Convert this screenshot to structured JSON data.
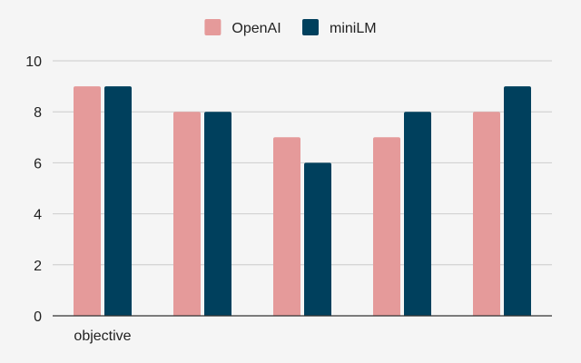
{
  "chart_data": {
    "type": "bar",
    "categories": [
      "objective",
      "",
      "",
      "",
      ""
    ],
    "series": [
      {
        "name": "OpenAI",
        "color": "#e59a9a",
        "values": [
          9,
          8,
          7,
          7,
          8
        ]
      },
      {
        "name": "miniLM",
        "color": "#00405d",
        "values": [
          9,
          8,
          6,
          8,
          9
        ]
      }
    ],
    "title": "",
    "xlabel": "",
    "ylabel": "",
    "ylim": [
      0,
      10
    ],
    "yticks": [
      "0",
      "2",
      "4",
      "6",
      "8",
      "10"
    ],
    "grid": true,
    "legend_position": "top-center"
  }
}
